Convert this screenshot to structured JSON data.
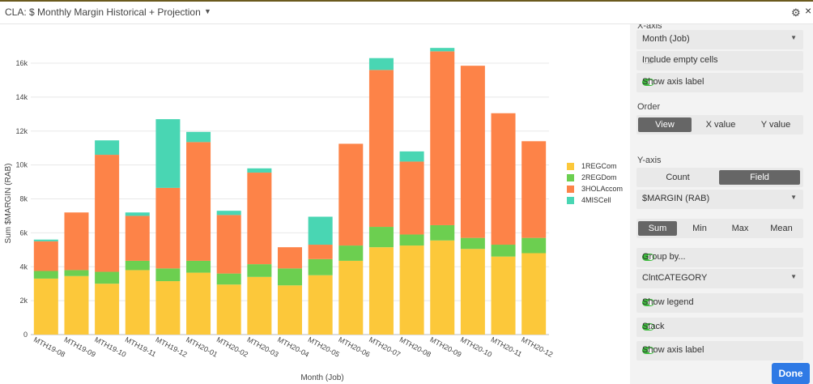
{
  "window": {
    "title": "CLA: $ Monthly Margin Historical + Projection",
    "title_caret": "▼",
    "gear_icon": "⚙",
    "close_icon": "×"
  },
  "chart_data": {
    "type": "bar",
    "stacked": true,
    "categories": [
      "MTH19-08",
      "MTH19-09",
      "MTH19-10",
      "MTH19-11",
      "MTH19-12",
      "MTH20-01",
      "MTH20-02",
      "MTH20-03",
      "MTH20-04",
      "MTH20-05",
      "MTH20-06",
      "MTH20-07",
      "MTH20-08",
      "MTH20-09",
      "MTH20-10",
      "MTH20-11",
      "MTH20-12"
    ],
    "series": [
      {
        "name": "1REGCom",
        "color": "#fcc83a",
        "values": [
          3300,
          3450,
          3000,
          3800,
          3150,
          3650,
          2950,
          3400,
          2900,
          3500,
          4350,
          5150,
          5250,
          5550,
          5050,
          4600,
          4800
        ]
      },
      {
        "name": "2REGDom",
        "color": "#6ccf50",
        "values": [
          450,
          350,
          700,
          550,
          750,
          700,
          650,
          750,
          1000,
          950,
          900,
          1200,
          650,
          900,
          650,
          700,
          900
        ]
      },
      {
        "name": "3HOLAccom",
        "color": "#fd8348",
        "values": [
          1750,
          3400,
          6900,
          2650,
          4750,
          7000,
          3450,
          5400,
          1250,
          850,
          6000,
          9250,
          4300,
          10250,
          10150,
          7750,
          5700
        ]
      },
      {
        "name": "4MISCell",
        "color": "#49d6b3",
        "values": [
          100,
          0,
          850,
          200,
          4050,
          600,
          250,
          250,
          0,
          1650,
          0,
          700,
          600,
          200,
          0,
          0,
          0
        ]
      }
    ],
    "xlabel": "Month (Job)",
    "ylabel": "Sum $MARGIN (RAB)",
    "ylim": [
      0,
      18000
    ],
    "yticks": [
      0,
      2000,
      4000,
      6000,
      8000,
      10000,
      12000,
      14000,
      16000
    ],
    "ytick_labels": [
      "0",
      "2k",
      "4k",
      "6k",
      "8k",
      "10k",
      "12k",
      "14k",
      "16k"
    ],
    "grid": true,
    "legend_position": "right"
  },
  "panel": {
    "xaxis_label": "X-axis",
    "xaxis_field": "Month (Job)",
    "include_empty": "Include empty cells",
    "show_axis_label_x": "Show axis label",
    "order_label": "Order",
    "order_options": [
      "View",
      "X value",
      "Y value"
    ],
    "order_selected": "View",
    "yaxis_label": "Y-axis",
    "yaxis_modes": [
      "Count",
      "Field"
    ],
    "yaxis_mode_selected": "Field",
    "yaxis_field": "$MARGIN (RAB)",
    "agg_options": [
      "Sum",
      "Min",
      "Max",
      "Mean"
    ],
    "agg_selected": "Sum",
    "group_by": "Group by...",
    "group_field": "ClntCATEGORY",
    "show_legend": "Show legend",
    "stack": "Stack",
    "show_axis_label_y": "Show axis label",
    "caret": "▼"
  },
  "done_label": "Done"
}
